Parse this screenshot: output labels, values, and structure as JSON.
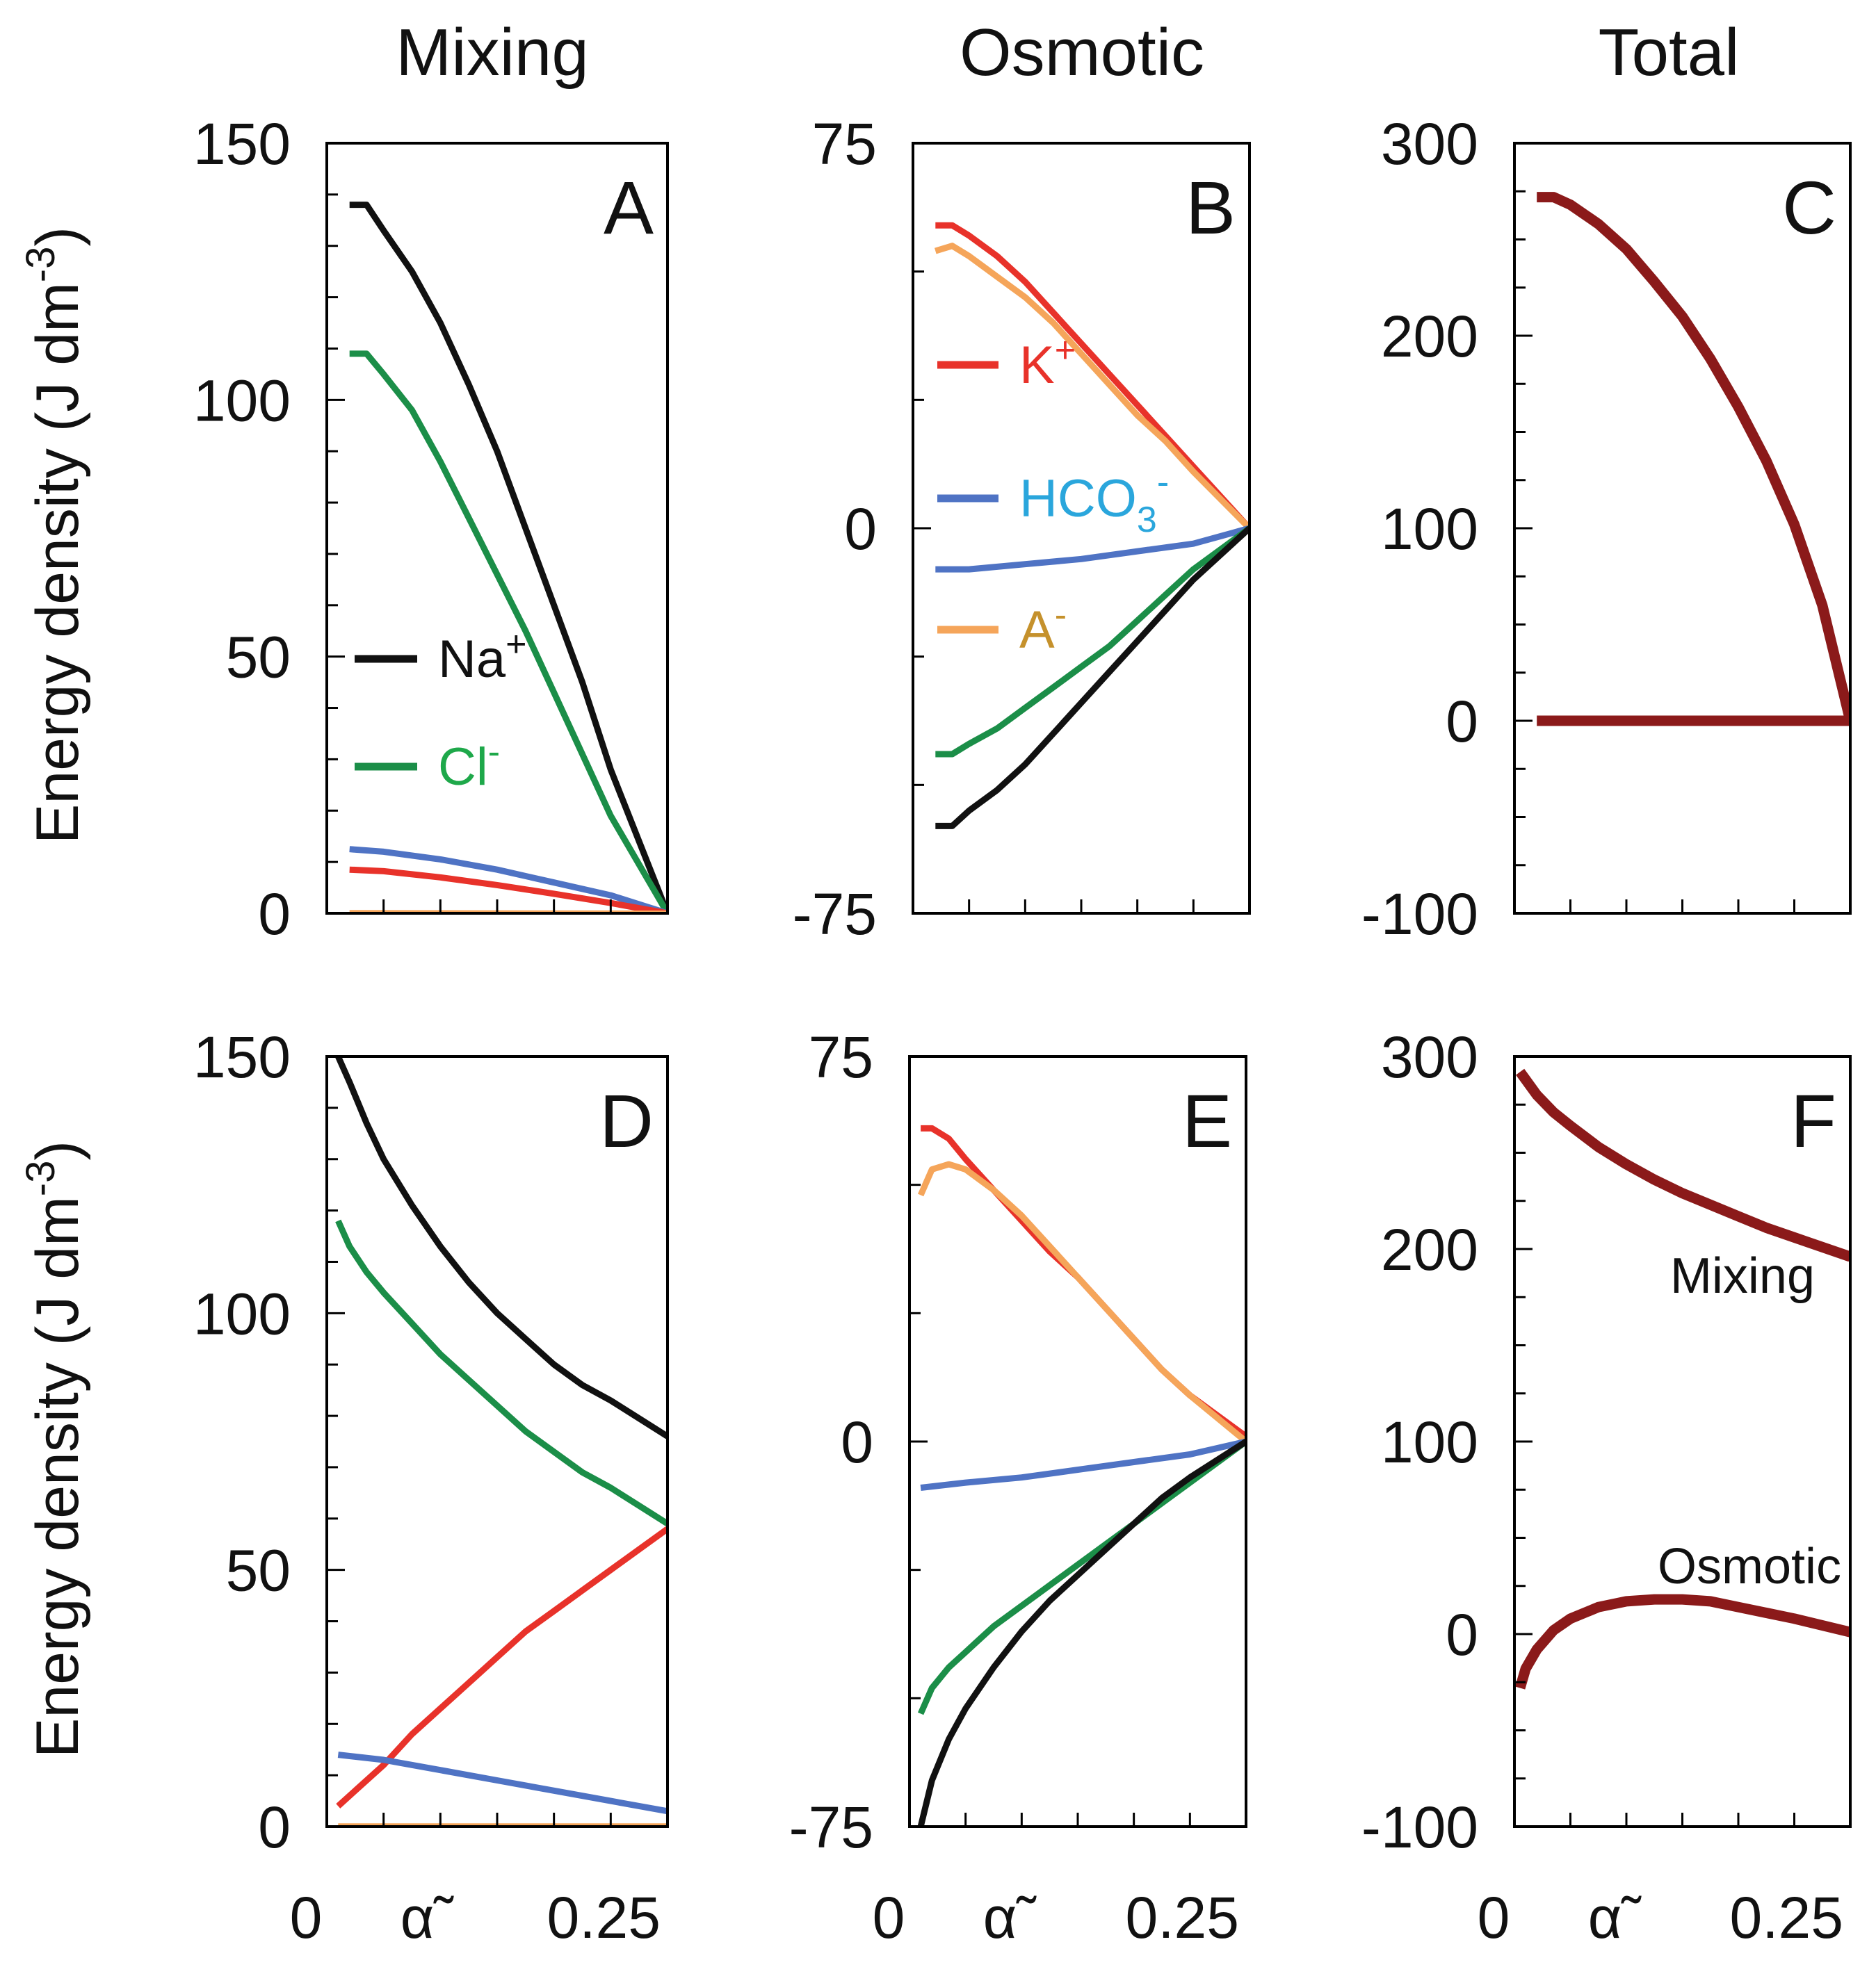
{
  "column_titles": [
    "Mixing",
    "Osmotic",
    "Total"
  ],
  "y_axis_title": "Energy density  (J dm",
  "y_axis_title_sup": "-3",
  "y_axis_title_end": ")",
  "x_axis": {
    "start_label": "0",
    "symbol": "α̃",
    "end_label": "0.25"
  },
  "colors": {
    "Na+": "#111111",
    "Cl-": "#1b8e48",
    "K+": "#e8322a",
    "HCO3-": "#4f73c4",
    "A-": "#f5a55a",
    "total": "#8b1a1a"
  },
  "legend_label_colors": {
    "Na+": "#111111",
    "Cl-": "#1ea84a",
    "K+": "#e8322a",
    "HCO3-": "#2aa6dc",
    "A-": "#c5912c"
  },
  "chart_data": [
    {
      "panel": "A",
      "type": "line",
      "column": "Mixing",
      "row": 1,
      "xlim": [
        0,
        0.3
      ],
      "ylim": [
        0,
        150
      ],
      "y_ticks": [
        0,
        50,
        100,
        150
      ],
      "y_tick_labels": [
        "0",
        "50",
        "100",
        "150"
      ],
      "y_minor_step": 10,
      "x_ticks": [
        0,
        0.05,
        0.1,
        0.15,
        0.2,
        0.25,
        0.3
      ],
      "show_x_labels": false,
      "legend": [
        {
          "series": "Na+",
          "base": "Na",
          "sup": "+"
        },
        {
          "series": "Cl-",
          "base": "Cl",
          "sup": "-"
        }
      ],
      "series": [
        {
          "name": "Na+",
          "x": [
            0.02,
            0.035,
            0.05,
            0.075,
            0.1,
            0.125,
            0.15,
            0.175,
            0.2,
            0.225,
            0.25,
            0.3
          ],
          "y": [
            138,
            138,
            133,
            125,
            115,
            103,
            90,
            75,
            60,
            45,
            28,
            0
          ]
        },
        {
          "name": "Cl-",
          "x": [
            0.02,
            0.035,
            0.05,
            0.075,
            0.1,
            0.125,
            0.15,
            0.175,
            0.2,
            0.225,
            0.25,
            0.3
          ],
          "y": [
            109,
            109,
            105,
            98,
            88,
            77,
            66,
            55,
            43,
            31,
            19,
            0
          ]
        },
        {
          "name": "HCO3-",
          "x": [
            0.02,
            0.05,
            0.1,
            0.15,
            0.2,
            0.25,
            0.3
          ],
          "y": [
            12.5,
            12,
            10.5,
            8.5,
            6,
            3.5,
            0
          ]
        },
        {
          "name": "K+",
          "x": [
            0.02,
            0.05,
            0.1,
            0.15,
            0.2,
            0.25,
            0.3
          ],
          "y": [
            8.5,
            8.2,
            7,
            5.5,
            3.8,
            2,
            0
          ]
        },
        {
          "name": "A-",
          "x": [
            0.02,
            0.3
          ],
          "y": [
            0.3,
            0.2
          ]
        }
      ]
    },
    {
      "panel": "B",
      "type": "line",
      "column": "Osmotic",
      "row": 1,
      "xlim": [
        0,
        0.3
      ],
      "ylim": [
        -75,
        75
      ],
      "y_ticks": [
        -75,
        0,
        75
      ],
      "y_tick_labels": [
        "-75",
        "0",
        "75"
      ],
      "y_minor_step": 25,
      "x_ticks": [
        0,
        0.05,
        0.1,
        0.15,
        0.2,
        0.25,
        0.3
      ],
      "show_x_labels": false,
      "legend": [
        {
          "series": "K+",
          "base": "K",
          "sup": "+"
        },
        {
          "series": "HCO3-",
          "base": "HCO",
          "sub": "3",
          "sup": "-"
        },
        {
          "series": "A-",
          "base": "A",
          "sup": "-"
        }
      ],
      "series": [
        {
          "name": "K+",
          "x": [
            0.02,
            0.035,
            0.05,
            0.075,
            0.1,
            0.125,
            0.15,
            0.175,
            0.2,
            0.225,
            0.25,
            0.3
          ],
          "y": [
            59,
            59,
            57,
            53,
            48,
            42,
            36,
            30,
            24,
            18,
            12,
            0
          ]
        },
        {
          "name": "A-",
          "x": [
            0.02,
            0.035,
            0.05,
            0.075,
            0.1,
            0.125,
            0.15,
            0.175,
            0.2,
            0.225,
            0.25,
            0.3
          ],
          "y": [
            54,
            55,
            53,
            49,
            45,
            40,
            34,
            28,
            22,
            17,
            11,
            0
          ]
        },
        {
          "name": "HCO3-",
          "x": [
            0.02,
            0.05,
            0.1,
            0.15,
            0.2,
            0.25,
            0.3
          ],
          "y": [
            -8,
            -8,
            -7,
            -6,
            -4.5,
            -3,
            0
          ]
        },
        {
          "name": "Cl-",
          "x": [
            0.02,
            0.035,
            0.05,
            0.075,
            0.1,
            0.125,
            0.15,
            0.175,
            0.2,
            0.225,
            0.25,
            0.3
          ],
          "y": [
            -44,
            -44,
            -42,
            -39,
            -35,
            -31,
            -27,
            -23,
            -18,
            -13,
            -8,
            0
          ]
        },
        {
          "name": "Na+",
          "x": [
            0.02,
            0.035,
            0.05,
            0.075,
            0.1,
            0.125,
            0.15,
            0.175,
            0.2,
            0.225,
            0.25,
            0.3
          ],
          "y": [
            -58,
            -58,
            -55,
            -51,
            -46,
            -40,
            -34,
            -28,
            -22,
            -16,
            -10,
            0
          ]
        }
      ]
    },
    {
      "panel": "C",
      "type": "line",
      "column": "Total",
      "row": 1,
      "xlim": [
        0,
        0.3
      ],
      "ylim": [
        -100,
        300
      ],
      "y_ticks": [
        -100,
        0,
        100,
        200,
        300
      ],
      "y_tick_labels": [
        "-100",
        "0",
        "100",
        "200",
        "300"
      ],
      "y_minor_step": 25,
      "x_ticks": [
        0,
        0.05,
        0.1,
        0.15,
        0.2,
        0.25,
        0.3
      ],
      "show_x_labels": false,
      "series": [
        {
          "name": "total",
          "x": [
            0.02,
            0.035,
            0.05,
            0.075,
            0.1,
            0.125,
            0.15,
            0.175,
            0.2,
            0.225,
            0.25,
            0.275,
            0.3
          ],
          "y": [
            272,
            272,
            268,
            258,
            245,
            228,
            210,
            188,
            163,
            135,
            102,
            60,
            0
          ]
        },
        {
          "name": "total",
          "x": [
            0.02,
            0.3
          ],
          "y": [
            0,
            0
          ]
        }
      ]
    },
    {
      "panel": "D",
      "type": "line",
      "column": "Mixing",
      "row": 2,
      "xlim": [
        0,
        0.3
      ],
      "ylim": [
        0,
        150
      ],
      "y_ticks": [
        0,
        50,
        100,
        150
      ],
      "y_tick_labels": [
        "0",
        "50",
        "100",
        "150"
      ],
      "y_minor_step": 10,
      "x_ticks": [
        0,
        0.05,
        0.1,
        0.15,
        0.2,
        0.25,
        0.3
      ],
      "show_x_labels": true,
      "series": [
        {
          "name": "Na+",
          "x": [
            0.01,
            0.02,
            0.035,
            0.05,
            0.075,
            0.1,
            0.125,
            0.15,
            0.175,
            0.2,
            0.225,
            0.25,
            0.3
          ],
          "y": [
            150,
            145,
            137,
            130,
            121,
            113,
            106,
            100,
            95,
            90,
            86,
            83,
            76
          ]
        },
        {
          "name": "Cl-",
          "x": [
            0.01,
            0.02,
            0.035,
            0.05,
            0.075,
            0.1,
            0.125,
            0.15,
            0.175,
            0.2,
            0.225,
            0.25,
            0.3
          ],
          "y": [
            118,
            113,
            108,
            104,
            98,
            92,
            87,
            82,
            77,
            73,
            69,
            66,
            59
          ]
        },
        {
          "name": "K+",
          "x": [
            0.01,
            0.025,
            0.05,
            0.075,
            0.1,
            0.125,
            0.15,
            0.175,
            0.2,
            0.225,
            0.25,
            0.3
          ],
          "y": [
            4,
            7,
            12,
            18,
            23,
            28,
            33,
            38,
            42,
            46,
            50,
            58
          ]
        },
        {
          "name": "HCO3-",
          "x": [
            0.01,
            0.05,
            0.1,
            0.15,
            0.2,
            0.25,
            0.3
          ],
          "y": [
            14,
            13,
            11,
            9,
            7,
            5,
            3
          ]
        },
        {
          "name": "A-",
          "x": [
            0.01,
            0.3
          ],
          "y": [
            0.3,
            0.3
          ]
        }
      ]
    },
    {
      "panel": "E",
      "type": "line",
      "column": "Osmotic",
      "row": 2,
      "xlim": [
        0,
        0.3
      ],
      "ylim": [
        -75,
        75
      ],
      "y_ticks": [
        -75,
        0,
        75
      ],
      "y_tick_labels": [
        "-75",
        "0",
        "75"
      ],
      "y_minor_step": 25,
      "x_ticks": [
        0,
        0.05,
        0.1,
        0.15,
        0.2,
        0.25,
        0.3
      ],
      "show_x_labels": true,
      "series": [
        {
          "name": "K+",
          "x": [
            0.01,
            0.02,
            0.035,
            0.05,
            0.075,
            0.1,
            0.125,
            0.15,
            0.175,
            0.2,
            0.225,
            0.25,
            0.3
          ],
          "y": [
            61,
            61,
            59,
            55,
            49,
            43,
            37,
            32,
            26,
            20,
            14,
            9,
            1
          ]
        },
        {
          "name": "A-",
          "x": [
            0.01,
            0.02,
            0.035,
            0.05,
            0.075,
            0.1,
            0.125,
            0.15,
            0.175,
            0.2,
            0.225,
            0.25,
            0.3
          ],
          "y": [
            48,
            53,
            54,
            53,
            49,
            44,
            38,
            32,
            26,
            20,
            14,
            9,
            0
          ]
        },
        {
          "name": "HCO3-",
          "x": [
            0.01,
            0.05,
            0.1,
            0.15,
            0.2,
            0.25,
            0.3
          ],
          "y": [
            -9,
            -8,
            -7,
            -5.5,
            -4,
            -2.5,
            0
          ]
        },
        {
          "name": "Cl-",
          "x": [
            0.01,
            0.02,
            0.035,
            0.05,
            0.075,
            0.1,
            0.125,
            0.15,
            0.175,
            0.2,
            0.225,
            0.25,
            0.3
          ],
          "y": [
            -53,
            -48,
            -44,
            -41,
            -36,
            -32,
            -28,
            -24,
            -20,
            -16,
            -12,
            -8,
            0
          ]
        },
        {
          "name": "Na+",
          "x": [
            0.01,
            0.02,
            0.035,
            0.05,
            0.075,
            0.1,
            0.125,
            0.15,
            0.175,
            0.2,
            0.225,
            0.25,
            0.3
          ],
          "y": [
            -75,
            -66,
            -58,
            -52,
            -44,
            -37,
            -31,
            -26,
            -21,
            -16,
            -11,
            -7,
            0
          ]
        }
      ]
    },
    {
      "panel": "F",
      "type": "line",
      "column": "Total",
      "row": 2,
      "xlim": [
        0,
        0.3
      ],
      "ylim": [
        -100,
        300
      ],
      "y_ticks": [
        -100,
        0,
        100,
        200,
        300
      ],
      "y_tick_labels": [
        "-100",
        "0",
        "100",
        "200",
        "300"
      ],
      "y_minor_step": 25,
      "x_ticks": [
        0,
        0.05,
        0.1,
        0.15,
        0.2,
        0.25,
        0.3
      ],
      "show_x_labels": true,
      "curve_labels": [
        "Mixing",
        "Osmotic"
      ],
      "series": [
        {
          "name": "total",
          "label": "Mixing",
          "x": [
            0.005,
            0.01,
            0.02,
            0.035,
            0.05,
            0.075,
            0.1,
            0.125,
            0.15,
            0.175,
            0.2,
            0.225,
            0.25,
            0.3
          ],
          "y": [
            292,
            288,
            280,
            271,
            264,
            253,
            244,
            236,
            229,
            223,
            217,
            211,
            206,
            196
          ]
        },
        {
          "name": "total",
          "label": "Osmotic",
          "x": [
            0.005,
            0.01,
            0.02,
            0.035,
            0.05,
            0.075,
            0.1,
            0.125,
            0.15,
            0.175,
            0.2,
            0.225,
            0.25,
            0.3
          ],
          "y": [
            -28,
            -18,
            -8,
            2,
            8,
            14,
            17,
            18,
            18,
            17,
            14,
            11,
            8,
            1
          ]
        }
      ]
    }
  ]
}
